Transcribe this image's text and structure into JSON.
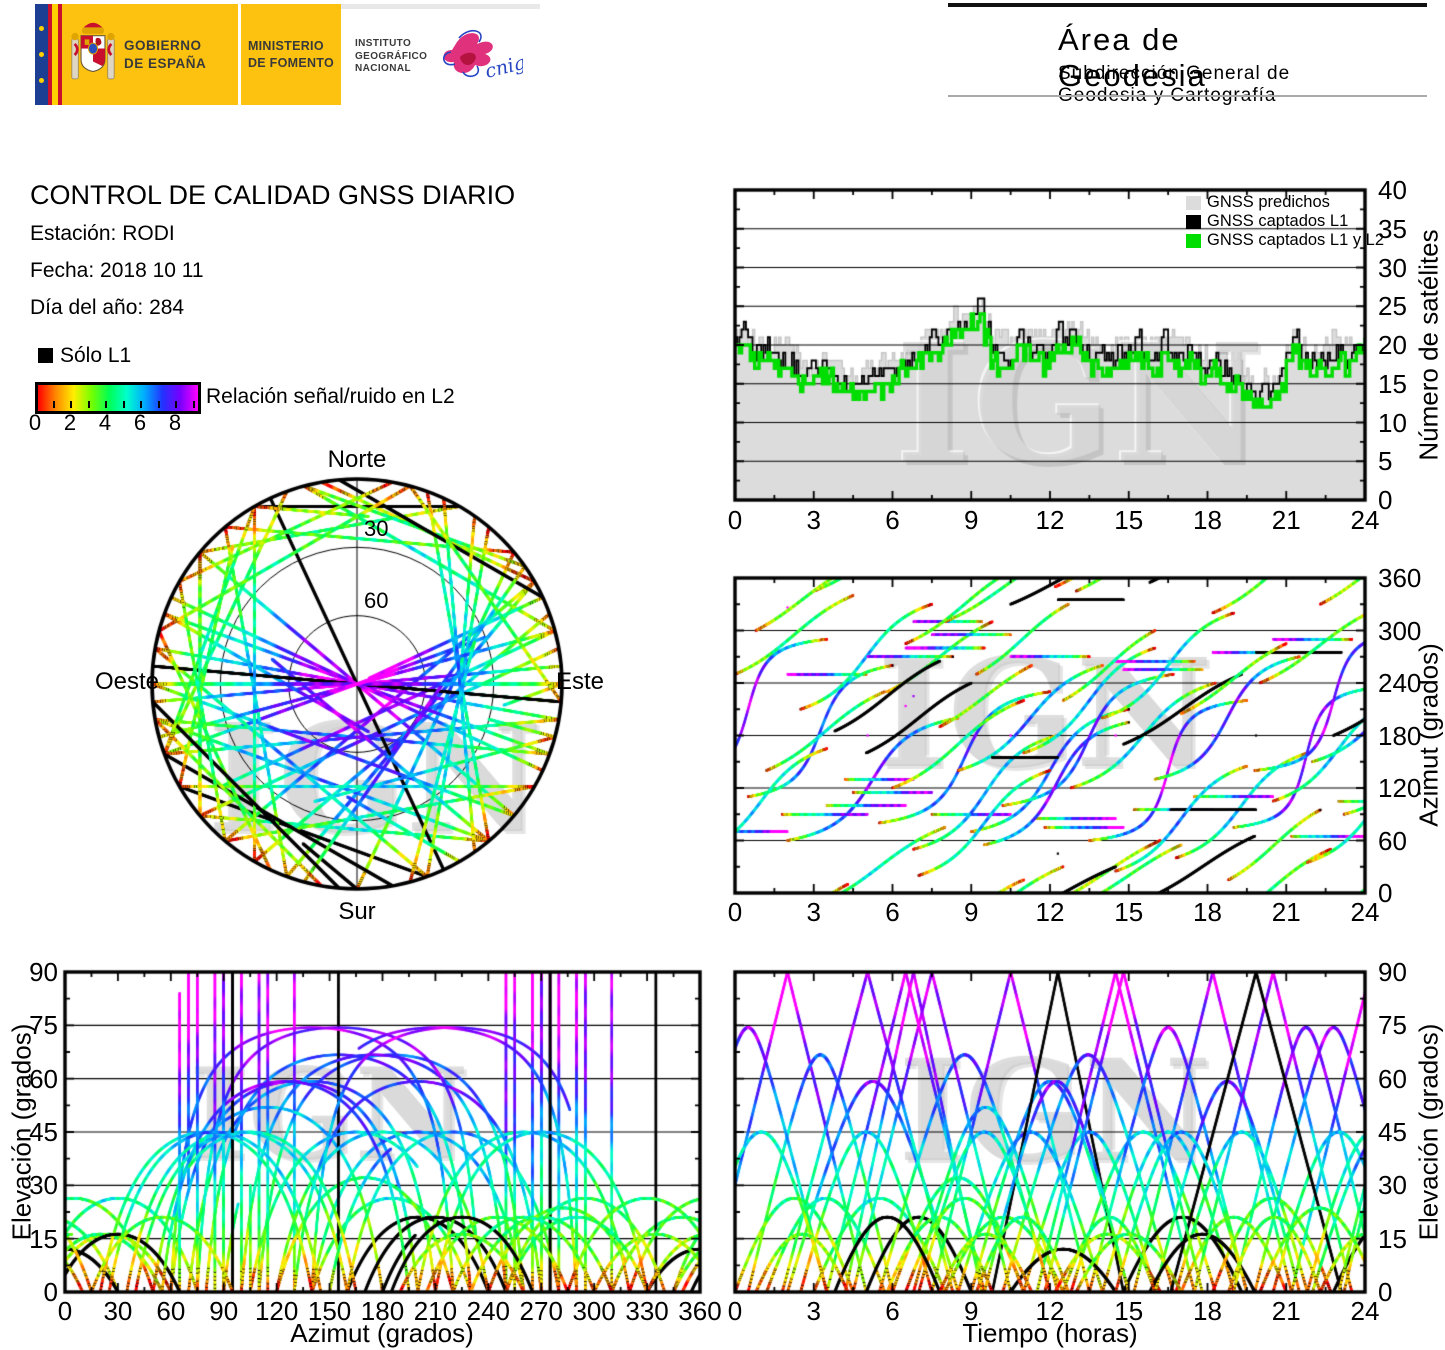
{
  "banner": {
    "gobierno": "GOBIERNO\nDE ESPAÑA",
    "ministerio": "MINISTERIO\nDE FOMENTO",
    "instituto": "INSTITUTO\nGEOGRÁFICO\nNACIONAL",
    "cnig": "cnig",
    "yellow": "#fdc20f"
  },
  "header": {
    "title": "Área de Geodesia",
    "subtitle": "Subdirección General de Geodesia y Cartografía"
  },
  "report": {
    "title": "CONTROL DE CALIDAD GNSS DIARIO",
    "station": "Estación: RODI",
    "date": "Fecha: 2018 10 11",
    "doy": "Día del año: 284"
  },
  "legend_l1": {
    "label": "Sólo L1",
    "color": "#000000"
  },
  "colorbar": {
    "label": "Relación señal/ruido en L2",
    "tick_labels": [
      "0",
      "2",
      "4",
      "6",
      "8"
    ],
    "range": [
      0,
      9.4
    ],
    "stops": [
      "#ff0000",
      "#ff8800",
      "#ffee00",
      "#77ff00",
      "#00ff55",
      "#00ffcc",
      "#00aaff",
      "#2233ff",
      "#7700ff",
      "#ff00ff"
    ]
  },
  "skyplot": {
    "north": "Norte",
    "south": "Sur",
    "east": "Este",
    "west": "Oeste",
    "rings": [
      "30",
      "60"
    ]
  },
  "watermark": "IGN",
  "seed": 20181011,
  "chart_data": [
    {
      "id": "sat_count",
      "type": "area",
      "ylabel": "Número de satélites",
      "x_ticks": [
        "0",
        "3",
        "6",
        "9",
        "12",
        "15",
        "18",
        "21",
        "24"
      ],
      "y_ticks": [
        "0",
        "5",
        "10",
        "15",
        "20",
        "25",
        "30",
        "35",
        "40"
      ],
      "xlim": [
        0,
        24
      ],
      "ylim": [
        0,
        40
      ],
      "grid_y": [
        5,
        10,
        15,
        20,
        25,
        30,
        35
      ],
      "t_step_hours": 0.25,
      "legend": [
        {
          "label": "GNSS predichos",
          "color": "#dcdcdc"
        },
        {
          "label": "GNSS captados L1",
          "color": "#000000"
        },
        {
          "label": "GNSS captados L1 y L2",
          "color": "#00dd00"
        }
      ],
      "series": {
        "captados_l1": [
          21,
          22,
          20,
          19,
          19,
          20,
          19,
          18,
          18,
          17,
          16,
          17,
          17,
          18,
          17,
          16,
          16,
          15,
          15,
          16,
          16,
          17,
          16,
          17,
          17,
          18,
          17,
          18,
          19,
          20,
          21,
          20,
          21,
          22,
          23,
          23,
          24,
          25,
          22,
          19,
          19,
          18,
          19,
          22,
          20,
          19,
          20,
          19,
          20,
          22,
          20,
          22,
          21,
          19,
          18,
          19,
          19,
          18,
          19,
          18,
          19,
          21,
          19,
          18,
          19,
          21,
          19,
          18,
          18,
          19,
          18,
          17,
          17,
          18,
          17,
          16,
          16,
          15,
          15,
          14,
          14,
          14,
          15,
          17,
          18,
          21,
          19,
          18,
          18,
          19,
          18,
          19,
          19,
          18,
          19,
          20,
          22
        ],
        "predichos_delta": [
          0,
          0,
          1,
          2,
          1,
          0,
          1,
          2,
          2,
          2,
          1,
          0,
          1,
          0,
          1,
          2,
          1,
          2,
          1,
          0,
          1,
          0,
          2,
          1,
          1,
          0,
          1,
          1,
          2,
          2,
          1,
          2,
          2,
          2,
          1,
          1,
          1,
          0,
          1,
          2,
          2,
          3,
          2,
          0,
          1,
          2,
          1,
          2,
          2,
          1,
          2,
          0,
          1,
          3,
          2,
          1,
          0,
          1,
          1,
          2,
          1,
          0,
          2,
          2,
          1,
          0,
          2,
          3,
          2,
          1,
          1,
          2,
          1,
          0,
          1,
          2,
          2,
          2,
          1,
          2,
          2,
          1,
          0,
          0,
          1,
          0,
          1,
          1,
          2,
          1,
          2,
          2,
          1,
          2,
          1,
          0,
          0
        ],
        "l1l2_delta": [
          1,
          2,
          1,
          1,
          1,
          1,
          2,
          1,
          1,
          1,
          1,
          2,
          1,
          2,
          1,
          1,
          2,
          1,
          2,
          2,
          2,
          3,
          2,
          2,
          1,
          1,
          1,
          1,
          1,
          1,
          2,
          1,
          1,
          1,
          1,
          1,
          1,
          1,
          1,
          1,
          2,
          1,
          1,
          2,
          1,
          1,
          1,
          2,
          1,
          2,
          1,
          2,
          1,
          1,
          1,
          1,
          2,
          1,
          1,
          1,
          1,
          2,
          1,
          1,
          2,
          2,
          1,
          1,
          1,
          1,
          1,
          2,
          1,
          1,
          2,
          1,
          1,
          1,
          1,
          1,
          1,
          1,
          2,
          2,
          1,
          2,
          1,
          1,
          1,
          1,
          1,
          2,
          1,
          1,
          1,
          1,
          1
        ]
      }
    },
    {
      "id": "azimuth_time",
      "type": "scatter",
      "ylabel": "Azimut (grados)",
      "x_ticks": [
        "0",
        "3",
        "6",
        "9",
        "12",
        "15",
        "18",
        "21",
        "24"
      ],
      "y_ticks": [
        "0",
        "60",
        "120",
        "180",
        "240",
        "300",
        "360"
      ],
      "xlim": [
        0,
        24
      ],
      "ylim": [
        0,
        360
      ],
      "grid_y": [
        60,
        120,
        180,
        240,
        300
      ],
      "source": "passes"
    },
    {
      "id": "elevation_azimuth",
      "type": "scatter",
      "xlabel": "Azimut (grados)",
      "ylabel": "Elevación (grados)",
      "x_ticks": [
        "0",
        "30",
        "60",
        "90",
        "120",
        "150",
        "180",
        "210",
        "240",
        "270",
        "300",
        "330",
        "360"
      ],
      "y_ticks": [
        "0",
        "15",
        "30",
        "45",
        "60",
        "75",
        "90"
      ],
      "xlim": [
        0,
        360
      ],
      "ylim": [
        0,
        90
      ],
      "grid_y": [
        15,
        30,
        45,
        60,
        75
      ],
      "source": "passes"
    },
    {
      "id": "elevation_time",
      "type": "scatter",
      "xlabel": "Tiempo (horas)",
      "ylabel": "Elevación (grados)",
      "x_ticks": [
        "0",
        "3",
        "6",
        "9",
        "12",
        "15",
        "18",
        "21",
        "24"
      ],
      "y_ticks": [
        "0",
        "15",
        "30",
        "45",
        "60",
        "75",
        "90"
      ],
      "xlim": [
        0,
        24
      ],
      "ylim": [
        0,
        90
      ],
      "grid_y": [
        15,
        30,
        45,
        60,
        75
      ],
      "source": "passes"
    },
    {
      "id": "skyplot",
      "type": "polar-scatter",
      "labels": [
        "Norte",
        "Este",
        "Sur",
        "Oeste"
      ],
      "elevation_rings": [
        30,
        60
      ],
      "source": "passes"
    }
  ],
  "passes": {
    "fields": [
      "rise_hour",
      "duration_hours",
      "azimuth_rise_deg",
      "azimuth_set_deg",
      "l1_only"
    ],
    "list": [
      [
        -1.0,
        6.0,
        70,
        250,
        0
      ],
      [
        0.5,
        5.5,
        110,
        260,
        0
      ],
      [
        1.2,
        4.5,
        140,
        230,
        0
      ],
      [
        2.0,
        6.5,
        60,
        200,
        0
      ],
      [
        3.0,
        5.0,
        345,
        75,
        0
      ],
      [
        3.5,
        6.0,
        100,
        280,
        0
      ],
      [
        4.2,
        5.2,
        130,
        310,
        0
      ],
      [
        5.0,
        4.0,
        160,
        240,
        1
      ],
      [
        5.5,
        6.5,
        80,
        230,
        0
      ],
      [
        6.0,
        5.0,
        120,
        220,
        0
      ],
      [
        6.8,
        5.5,
        50,
        180,
        0
      ],
      [
        7.5,
        6.0,
        90,
        270,
        0
      ],
      [
        8.0,
        4.5,
        310,
        30,
        0
      ],
      [
        8.5,
        5.5,
        140,
        260,
        0
      ],
      [
        9.0,
        6.0,
        70,
        210,
        0
      ],
      [
        9.8,
        5.0,
        155,
        335,
        1
      ],
      [
        10.2,
        6.5,
        100,
        250,
        0
      ],
      [
        11.0,
        5.0,
        160,
        280,
        0
      ],
      [
        11.5,
        6.0,
        85,
        265,
        0
      ],
      [
        12.2,
        4.0,
        350,
        60,
        0
      ],
      [
        12.8,
        5.5,
        120,
        240,
        0
      ],
      [
        13.5,
        6.0,
        60,
        220,
        0
      ],
      [
        14.0,
        5.0,
        200,
        320,
        0
      ],
      [
        14.8,
        4.5,
        170,
        250,
        1
      ],
      [
        15.2,
        6.0,
        95,
        275,
        0
      ],
      [
        16.0,
        5.5,
        130,
        270,
        0
      ],
      [
        16.8,
        5.0,
        40,
        160,
        0
      ],
      [
        17.5,
        6.0,
        110,
        290,
        0
      ],
      [
        18.2,
        4.5,
        320,
        50,
        0
      ],
      [
        19.0,
        5.5,
        75,
        235,
        0
      ],
      [
        19.8,
        6.0,
        140,
        300,
        0
      ],
      [
        20.5,
        5.0,
        105,
        225,
        0
      ],
      [
        21.2,
        6.0,
        65,
        245,
        0
      ],
      [
        22.0,
        5.5,
        150,
        270,
        0
      ],
      [
        22.8,
        4.5,
        180,
        260,
        1
      ],
      [
        23.2,
        5.0,
        90,
        230,
        0
      ],
      [
        -2.5,
        6.0,
        130,
        290,
        0
      ],
      [
        16.6,
        6.5,
        95,
        275,
        1
      ],
      [
        10.5,
        4.0,
        330,
        30,
        1
      ],
      [
        2.5,
        5.0,
        210,
        330,
        0
      ],
      [
        5.8,
        4.0,
        230,
        310,
        0
      ],
      [
        13.0,
        4.0,
        345,
        55,
        0
      ],
      [
        7.0,
        5.0,
        20,
        140,
        0
      ],
      [
        15.8,
        4.0,
        355,
        65,
        1
      ],
      [
        0.0,
        4.5,
        250,
        340,
        0
      ],
      [
        4.5,
        6.0,
        115,
        295,
        0
      ],
      [
        9.5,
        5.5,
        55,
        195,
        0
      ],
      [
        17.0,
        4.0,
        205,
        285,
        0
      ],
      [
        21.8,
        5.0,
        35,
        155,
        0
      ],
      [
        1.8,
        6.5,
        90,
        270,
        0
      ],
      [
        11.8,
        6.0,
        75,
        255,
        0
      ],
      [
        6.5,
        4.5,
        285,
        15,
        0
      ],
      [
        14.5,
        5.0,
        25,
        145,
        0
      ],
      [
        20.0,
        4.5,
        240,
        325,
        0
      ],
      [
        23.0,
        6.0,
        105,
        285,
        0
      ],
      [
        3.8,
        4.0,
        185,
        265,
        1
      ],
      [
        -1.5,
        5.0,
        45,
        165,
        0
      ],
      [
        0.8,
        3.5,
        300,
        10,
        0
      ],
      [
        7.8,
        3.5,
        190,
        260,
        0
      ],
      [
        12.5,
        3.5,
        220,
        300,
        0
      ],
      [
        18.8,
        3.5,
        15,
        95,
        0
      ],
      [
        22.3,
        3.5,
        330,
        40,
        0
      ],
      [
        9.2,
        3.5,
        250,
        330,
        0
      ]
    ]
  }
}
